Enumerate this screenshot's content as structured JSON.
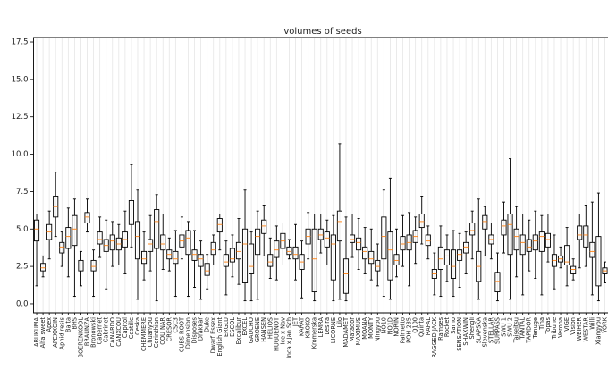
{
  "chart_data": {
    "type": "box",
    "title": "volumes of seeds",
    "categories": [
      "ABUKUMA",
      "Alfa sweet",
      "Apex",
      "APEXXGIN",
      "Aphid resis",
      "Balta",
      "BHS",
      "BOERENKOOL",
      "BRAUNZA",
      "Bronowski",
      "Cabernet",
      "Cabrinet",
      "CANARDO",
      "CANXCOU",
      "Capitol",
      "Castille",
      "Ceska",
      "CHEMMERE",
      "Chuanyou",
      "Corinthian",
      "COU NAR",
      "CRESOR",
      "CSC3",
      "CUBS ROOT",
      "Dimension",
      "Disposes",
      "Drakkar",
      "Duke",
      "Dwarf Essex",
      "English Giant",
      "ERGLU",
      "ESCOL",
      "Excalibur",
      "EXCEL",
      "GAUCHO",
      "GROENE",
      "HANSEN",
      "HELIOS",
      "HUGUENOT",
      "Ice x Nav",
      "Inca x Jan Sch",
      "JET",
      "KARAT",
      "KROKO",
      "Kromerska",
      "LEMRA",
      "Lesira",
      "LICORNE",
      "Lilo",
      "MADAMET",
      "Matador",
      "MAXIMUS",
      "MOANA",
      "MONTY",
      "Ningyou",
      "NO10",
      "NO1D",
      "NORIN",
      "Palmetto",
      "POH 285",
      "Q100",
      "Quinta",
      "RAFAL",
      "RAGGED JACK",
      "Ramses",
      "Rocket",
      "Samo",
      "SENSATION",
      "SHAXWIN",
      "Shengli",
      "SLAPSKA",
      "Slovenska",
      "STELLAR",
      "SURPASS",
      "SWU 1",
      "SWU 2",
      "Taiseitsu",
      "TANTAL",
      "TAPIDOR",
      "Tenuge",
      "Tina",
      "Topas",
      "Tribune",
      "Verona",
      "VIGE",
      "Vision",
      "WEIHER",
      "WESTAR",
      "Willi",
      "Xiangyou",
      "YORK"
    ],
    "whislo": [
      1.2,
      1.8,
      3.0,
      4.5,
      2.5,
      1.8,
      0.5,
      1.2,
      4.8,
      0.5,
      3.1,
      1.0,
      2.5,
      2.6,
      2.0,
      3.8,
      0.3,
      1.6,
      2.2,
      0.2,
      2.3,
      2.2,
      0.5,
      3.0,
      0.5,
      1.1,
      0.3,
      1.0,
      2.6,
      3.6,
      0.6,
      1.8,
      1.3,
      0.2,
      0.2,
      0.3,
      3.2,
      1.7,
      1.6,
      2.6,
      3.0,
      1.6,
      0.4,
      3.0,
      0.2,
      3.4,
      2.6,
      0.2,
      0.3,
      0.2,
      3.1,
      2.3,
      2.0,
      1.6,
      1.2,
      0.5,
      0.3,
      1.8,
      2.5,
      1.2,
      2.7,
      4.0,
      3.0,
      0.6,
      0.5,
      1.5,
      0.5,
      1.1,
      2.0,
      3.0,
      0.3,
      3.2,
      3.0,
      0.2,
      3.4,
      0.3,
      1.8,
      0.6,
      2.2,
      1.7,
      0.6,
      2.8,
      1.0,
      2.4,
      1.2,
      1.6,
      2.4,
      2.5,
      0.6,
      0.2,
      1.4
    ],
    "q1": [
      4.2,
      2.2,
      4.3,
      5.8,
      3.4,
      3.7,
      3.9,
      2.2,
      5.4,
      2.2,
      4.0,
      3.5,
      3.6,
      3.6,
      3.8,
      5.3,
      3.0,
      2.7,
      3.5,
      3.7,
      3.6,
      3.0,
      2.7,
      3.8,
      3.3,
      2.9,
      2.5,
      1.9,
      3.3,
      4.8,
      2.5,
      2.8,
      3.0,
      1.4,
      2.0,
      3.3,
      4.7,
      2.5,
      3.1,
      3.7,
      3.3,
      3.0,
      2.3,
      4.0,
      0.8,
      4.3,
      3.8,
      1.6,
      4.2,
      0.7,
      4.1,
      3.6,
      3.0,
      2.7,
      2.2,
      3.0,
      1.6,
      2.6,
      3.6,
      3.6,
      4.1,
      5.1,
      3.9,
      1.7,
      2.3,
      2.6,
      1.7,
      2.9,
      3.4,
      4.6,
      1.5,
      5.0,
      4.0,
      0.8,
      4.6,
      3.3,
      3.6,
      3.3,
      3.5,
      3.6,
      3.5,
      3.8,
      2.5,
      2.8,
      2.6,
      2.0,
      4.3,
      3.8,
      3.1,
      1.2,
      2.0
    ],
    "med": [
      5.0,
      2.4,
      4.8,
      6.5,
      3.8,
      4.5,
      5.0,
      2.6,
      5.8,
      2.5,
      4.3,
      3.9,
      4.2,
      4.0,
      4.3,
      6.0,
      4.5,
      3.0,
      4.0,
      5.5,
      4.0,
      3.3,
      3.0,
      4.2,
      4.4,
      3.3,
      3.0,
      2.2,
      3.6,
      5.3,
      2.8,
      3.0,
      3.5,
      4.0,
      2.5,
      4.5,
      5.2,
      2.8,
      3.6,
      4.2,
      3.5,
      3.3,
      2.8,
      4.5,
      3.0,
      4.6,
      4.4,
      4.0,
      5.5,
      2.0,
      4.3,
      4.1,
      3.5,
      3.0,
      2.5,
      4.5,
      3.6,
      2.9,
      4.0,
      4.1,
      4.5,
      5.5,
      4.2,
      2.0,
      3.0,
      3.2,
      2.5,
      3.3,
      3.8,
      4.9,
      2.5,
      5.5,
      4.3,
      1.5,
      5.2,
      5.3,
      4.5,
      4.1,
      3.8,
      4.2,
      4.5,
      4.3,
      2.9,
      3.0,
      2.8,
      2.3,
      4.6,
      4.6,
      3.5,
      2.6,
      2.2
    ],
    "q3": [
      5.6,
      2.7,
      5.3,
      7.2,
      4.1,
      5.1,
      5.9,
      2.9,
      6.1,
      2.9,
      4.8,
      4.3,
      4.6,
      4.4,
      4.8,
      6.9,
      5.5,
      3.5,
      4.3,
      6.3,
      4.6,
      3.6,
      3.5,
      4.6,
      4.9,
      3.6,
      3.3,
      2.7,
      4.1,
      5.7,
      3.3,
      3.7,
      4.1,
      5.0,
      4.0,
      5.0,
      5.6,
      3.3,
      4.2,
      4.7,
      3.8,
      3.8,
      3.3,
      5.0,
      5.0,
      5.0,
      4.8,
      4.6,
      6.2,
      3.0,
      4.6,
      4.4,
      3.8,
      3.5,
      2.9,
      5.8,
      4.8,
      3.3,
      4.5,
      4.6,
      4.9,
      6.0,
      4.6,
      2.3,
      3.8,
      3.6,
      3.6,
      3.6,
      4.1,
      5.4,
      3.5,
      5.9,
      4.6,
      2.1,
      5.6,
      6.0,
      5.0,
      4.6,
      4.3,
      4.6,
      4.8,
      4.7,
      3.3,
      3.2,
      3.9,
      2.5,
      5.2,
      5.2,
      4.1,
      4.5,
      2.4
    ],
    "whishi": [
      6.0,
      3.2,
      6.2,
      8.8,
      4.8,
      6.4,
      7.0,
      3.5,
      7.0,
      3.6,
      5.8,
      5.6,
      5.5,
      5.3,
      6.2,
      9.3,
      7.6,
      4.8,
      5.9,
      7.3,
      6.0,
      4.4,
      4.9,
      5.8,
      5.5,
      4.9,
      4.2,
      3.3,
      4.6,
      6.0,
      4.2,
      4.6,
      5.7,
      7.6,
      4.8,
      6.2,
      6.6,
      4.4,
      5.2,
      5.4,
      4.3,
      5.3,
      4.2,
      6.1,
      6.0,
      6.0,
      5.6,
      5.9,
      10.7,
      5.8,
      6.0,
      5.7,
      5.1,
      5.0,
      4.0,
      7.6,
      8.4,
      5.0,
      5.9,
      6.1,
      5.8,
      7.2,
      5.2,
      3.4,
      5.2,
      4.6,
      4.9,
      4.7,
      4.8,
      6.2,
      7.0,
      6.5,
      5.4,
      3.4,
      6.8,
      9.7,
      6.5,
      6.0,
      5.6,
      6.2,
      5.9,
      6.0,
      4.6,
      3.8,
      5.1,
      3.0,
      6.0,
      6.6,
      6.8,
      7.4,
      2.8
    ],
    "box_color": "#000000",
    "median_color": "#ff7f0e",
    "ylim": [
      -0.6,
      17.8
    ],
    "yticks": [
      {
        "value": 0,
        "label": "0.0"
      },
      {
        "value": 2.5,
        "label": "2.5"
      },
      {
        "value": 5,
        "label": "5.0"
      },
      {
        "value": 7.5,
        "label": "7.5"
      },
      {
        "value": 10,
        "label": "10.0"
      },
      {
        "value": 12.5,
        "label": "12.5"
      },
      {
        "value": 15,
        "label": "15.0"
      },
      {
        "value": 17.5,
        "label": "17.5"
      }
    ],
    "x_grid": true
  }
}
